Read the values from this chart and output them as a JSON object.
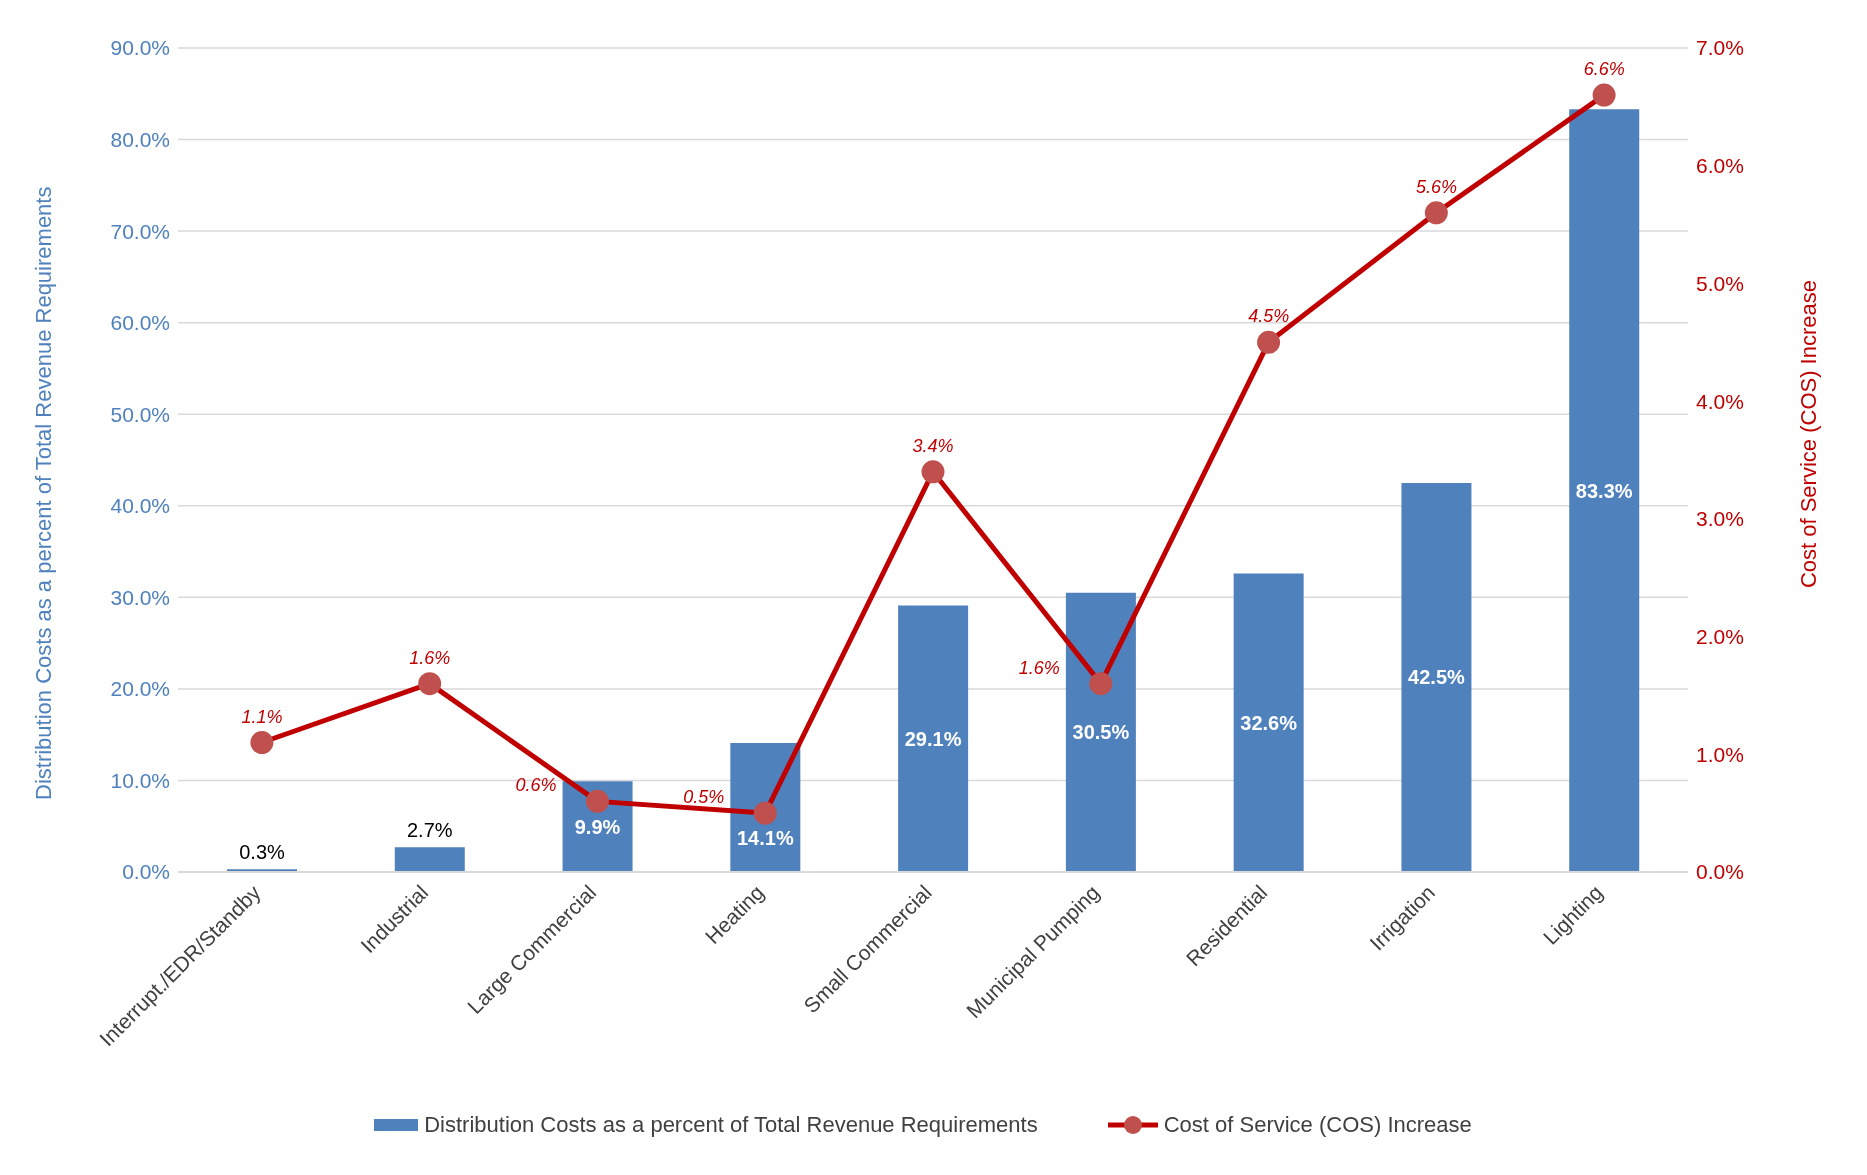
{
  "chart_data": {
    "type": "bar",
    "ylabel": "Distribution Costs as a percent of Total Revenue Requirements",
    "y2label": "Cost of Service (COS) Increase",
    "categories": [
      "Interrupt./EDR/Standby",
      "Industrial",
      "Large Commercial",
      "Heating",
      "Small Commercial",
      "Municipal Pumping",
      "Residential",
      "Irrigation",
      "Lighting"
    ],
    "series": [
      {
        "name": "Distribution Costs as a percent of Total Revenue Requirements",
        "color": "#4f81bd",
        "values": [
          0.3,
          2.7,
          9.9,
          14.1,
          29.1,
          30.5,
          32.6,
          42.5,
          83.3
        ],
        "value_labels": [
          "0.3%",
          "2.7%",
          "9.9%",
          "14.1%",
          "29.1%",
          "30.5%",
          "32.6%",
          "42.5%",
          "83.3%"
        ]
      },
      {
        "name": "Cost of Service (COS) Increase",
        "type": "line",
        "axis": "y2",
        "color": "#c00000",
        "marker": "circle",
        "values": [
          1.1,
          1.6,
          0.6,
          0.5,
          3.4,
          1.6,
          4.5,
          5.6,
          6.6
        ],
        "value_labels": [
          "1.1%",
          "1.6%",
          "0.6%",
          "0.5%",
          "3.4%",
          "1.6%",
          "4.5%",
          "5.6%",
          "6.6%"
        ]
      }
    ],
    "ylim": [
      0,
      90
    ],
    "yticks": [
      {
        "value": 0,
        "label": "0.0%"
      },
      {
        "value": 10,
        "label": "10.0%"
      },
      {
        "value": 20,
        "label": "20.0%"
      },
      {
        "value": 30,
        "label": "30.0%"
      },
      {
        "value": 40,
        "label": "40.0%"
      },
      {
        "value": 50,
        "label": "50.0%"
      },
      {
        "value": 60,
        "label": "60.0%"
      },
      {
        "value": 70,
        "label": "70.0%"
      },
      {
        "value": 80,
        "label": "80.0%"
      },
      {
        "value": 90,
        "label": "90.0%"
      }
    ],
    "y2lim": [
      0,
      7
    ],
    "y2ticks": [
      {
        "value": 0,
        "label": "0.0%"
      },
      {
        "value": 1,
        "label": "1.0%"
      },
      {
        "value": 2,
        "label": "2.0%"
      },
      {
        "value": 3,
        "label": "3.0%"
      },
      {
        "value": 4,
        "label": "4.0%"
      },
      {
        "value": 5,
        "label": "5.0%"
      },
      {
        "value": 6,
        "label": "6.0%"
      },
      {
        "value": 7,
        "label": "7.0%"
      }
    ],
    "grid": "y",
    "legend": "bottom"
  }
}
